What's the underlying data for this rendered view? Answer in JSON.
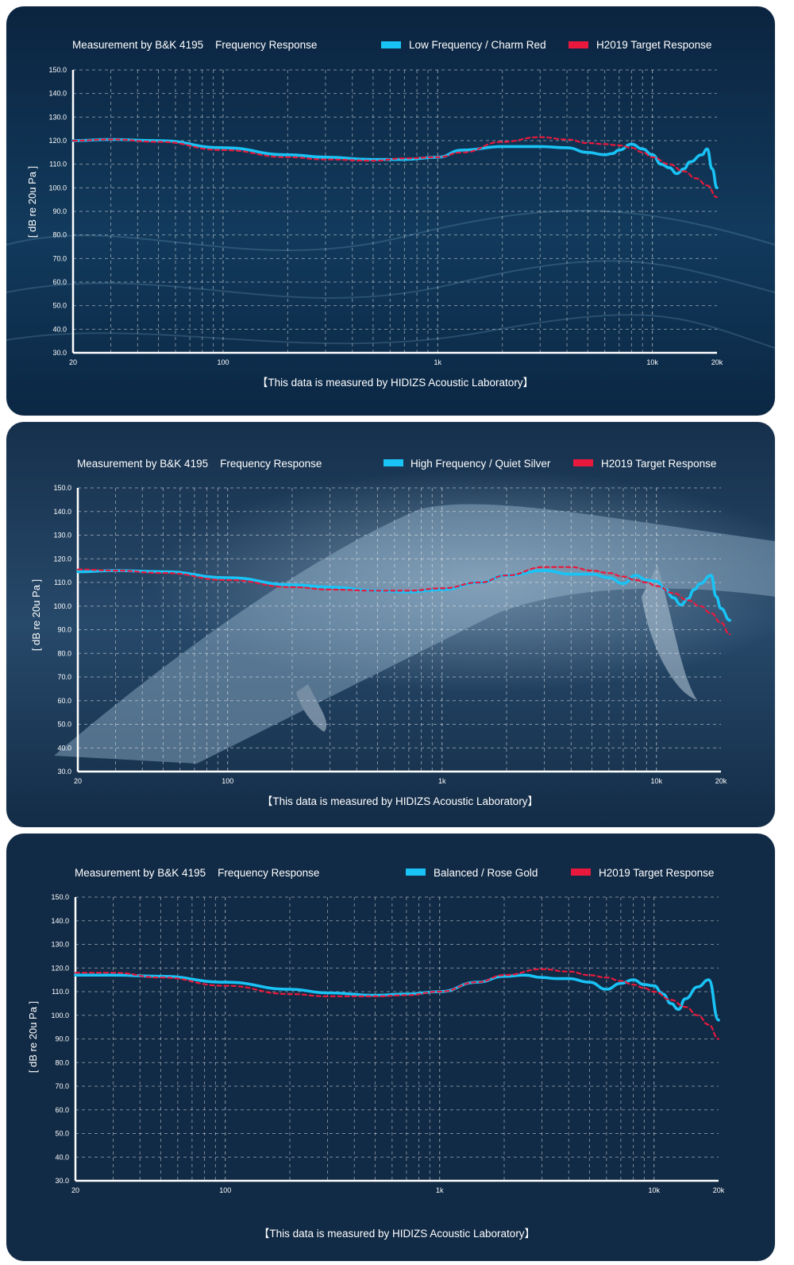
{
  "chart_data": [
    {
      "type": "line",
      "title": "Measurement by B&K 4195    Frequency Response",
      "ylabel": "[ dB re 20u Pa ]",
      "xscale": "log",
      "xlim": [
        20,
        20000
      ],
      "ylim": [
        30,
        150
      ],
      "yticks": [
        "150.0",
        "140.0",
        "130.0",
        "120.0",
        "110.0",
        "100.0",
        "90.0",
        "80.0",
        "70.0",
        "60.0",
        "50.0",
        "40.0",
        "30.0"
      ],
      "xticks": [
        {
          "value": 20,
          "label": "20"
        },
        {
          "value": 100,
          "label": "100"
        },
        {
          "value": 1000,
          "label": "1k"
        },
        {
          "value": 10000,
          "label": "10k"
        },
        {
          "value": 20000,
          "label": "20k"
        }
      ],
      "grid": true,
      "legend_position": "top-right",
      "footer": "【This data is measured by HIDIZS Acoustic Laboratory】",
      "colors": {
        "measured": "#19c3f5",
        "target": "#e8193c",
        "background": "#0e2a46"
      },
      "series": [
        {
          "name": "Low Frequency / Charm Red",
          "style": "solid",
          "x": [
            20,
            30,
            50,
            100,
            200,
            300,
            500,
            700,
            1000,
            1300,
            2000,
            3000,
            4000,
            5000,
            6000,
            6500,
            7000,
            8000,
            9000,
            10000,
            11000,
            12000,
            13000,
            14000,
            15000,
            17000,
            18000,
            19000,
            20000
          ],
          "y": [
            120,
            120.5,
            120,
            117,
            114,
            113,
            112,
            112,
            113,
            116,
            117.5,
            117.5,
            117,
            115,
            114,
            114.5,
            116,
            118.5,
            116.5,
            114,
            110,
            108.5,
            106,
            108,
            111,
            114,
            116.5,
            108,
            100
          ]
        },
        {
          "name": "H2019 Target Response",
          "style": "dashed",
          "x": [
            20,
            30,
            50,
            100,
            200,
            300,
            500,
            700,
            1000,
            1300,
            2000,
            3000,
            4000,
            5000,
            6000,
            7000,
            8000,
            9000,
            10000,
            12000,
            14000,
            16000,
            18000,
            20000
          ],
          "y": [
            120,
            120.5,
            119.5,
            116,
            113,
            112,
            111.5,
            112.5,
            113,
            115,
            119.5,
            121.5,
            120.5,
            119,
            118.5,
            118,
            117,
            115,
            113,
            110,
            107,
            104,
            101,
            96
          ]
        }
      ]
    },
    {
      "type": "line",
      "title": "Measurement by B&K 4195    Frequency Response",
      "ylabel": "[ dB re 20u Pa ]",
      "xscale": "log",
      "xlim": [
        20,
        20000
      ],
      "ylim": [
        30,
        150
      ],
      "yticks": [
        "150.0",
        "140.0",
        "130.0",
        "120.0",
        "110.0",
        "100.0",
        "90.0",
        "80.0",
        "70.0",
        "60.0",
        "50.0",
        "40.0",
        "30.0"
      ],
      "xticks": [
        {
          "value": 20,
          "label": "20"
        },
        {
          "value": 100,
          "label": "100"
        },
        {
          "value": 1000,
          "label": "1k"
        },
        {
          "value": 10000,
          "label": "10k"
        },
        {
          "value": 20000,
          "label": "20k"
        }
      ],
      "grid": true,
      "legend_position": "top-right",
      "footer": "【This data is measured by HIDIZS Acoustic Laboratory】",
      "colors": {
        "measured": "#19c3f5",
        "target": "#e8193c",
        "background": "#1c3550"
      },
      "series": [
        {
          "name": "High Frequency / Quiet Silver",
          "style": "solid",
          "x": [
            20,
            30,
            50,
            100,
            200,
            300,
            500,
            700,
            1000,
            1500,
            2000,
            3000,
            4000,
            5000,
            6000,
            7000,
            8000,
            9000,
            10000,
            11000,
            12000,
            13000,
            14000,
            15000,
            16000,
            18000,
            19000,
            20000,
            22000
          ],
          "y": [
            114.5,
            115,
            114.5,
            112,
            109,
            108,
            106.5,
            106,
            107,
            110,
            113,
            115,
            113.5,
            113.5,
            112,
            109.5,
            113,
            111,
            110.5,
            107,
            103.5,
            100.5,
            103,
            107,
            109.5,
            113,
            104,
            99,
            94
          ]
        },
        {
          "name": "H2019 Target Response",
          "style": "dashed",
          "x": [
            20,
            30,
            50,
            100,
            200,
            300,
            500,
            700,
            1000,
            1500,
            2000,
            3000,
            4000,
            5000,
            6000,
            7000,
            8000,
            9000,
            10000,
            12000,
            14000,
            16000,
            18000,
            20000,
            22000
          ],
          "y": [
            115.5,
            115,
            114,
            111,
            108,
            107,
            106.5,
            106.5,
            107.5,
            110,
            113,
            116.5,
            116.5,
            115,
            114,
            112.5,
            111,
            110,
            108.5,
            105.5,
            102.5,
            100,
            97,
            93,
            88
          ]
        }
      ]
    },
    {
      "type": "line",
      "title": "Measurement by B&K 4195    Frequency Response",
      "ylabel": "[ dB re 20u Pa ]",
      "xscale": "log",
      "xlim": [
        20,
        20000
      ],
      "ylim": [
        30,
        150
      ],
      "yticks": [
        "150.0",
        "140.0",
        "130.0",
        "120.0",
        "110.0",
        "100.0",
        "90.0",
        "80.0",
        "70.0",
        "60.0",
        "50.0",
        "40.0",
        "30.0"
      ],
      "xticks": [
        {
          "value": 20,
          "label": "20"
        },
        {
          "value": 100,
          "label": "100"
        },
        {
          "value": 1000,
          "label": "1k"
        },
        {
          "value": 10000,
          "label": "10k"
        },
        {
          "value": 20000,
          "label": "20k"
        }
      ],
      "grid": true,
      "legend_position": "top-right",
      "footer": "【This data is measured by HIDIZS Acoustic Laboratory】",
      "colors": {
        "measured": "#19c3f5",
        "target": "#e8193c",
        "background": "#112a45"
      },
      "series": [
        {
          "name": "Balanced / Rose Gold",
          "style": "solid",
          "x": [
            20,
            30,
            50,
            100,
            200,
            300,
            500,
            700,
            1000,
            1500,
            2000,
            2500,
            3000,
            3500,
            4000,
            5000,
            6000,
            7000,
            8000,
            9000,
            10000,
            11000,
            12000,
            13000,
            14000,
            16000,
            18000,
            20000
          ],
          "y": [
            117,
            117,
            116.5,
            114,
            111,
            109.5,
            108.5,
            109,
            110,
            114,
            116.5,
            117,
            116,
            115.5,
            115.5,
            114,
            111,
            113.5,
            115,
            113,
            112.5,
            109,
            105,
            102.5,
            107,
            112,
            115,
            98
          ]
        },
        {
          "name": "H2019 Target Response",
          "style": "dashed",
          "x": [
            20,
            30,
            50,
            100,
            200,
            300,
            500,
            700,
            1000,
            1500,
            2000,
            3000,
            4000,
            5000,
            6000,
            7000,
            8000,
            9000,
            10000,
            12000,
            14000,
            16000,
            18000,
            20000
          ],
          "y": [
            118,
            118,
            116,
            112.5,
            109,
            108,
            108,
            108.5,
            110,
            114,
            117,
            119.5,
            118.5,
            117,
            116,
            114.5,
            113,
            111.5,
            110,
            106.5,
            103.5,
            100,
            96,
            90
          ]
        }
      ]
    }
  ]
}
